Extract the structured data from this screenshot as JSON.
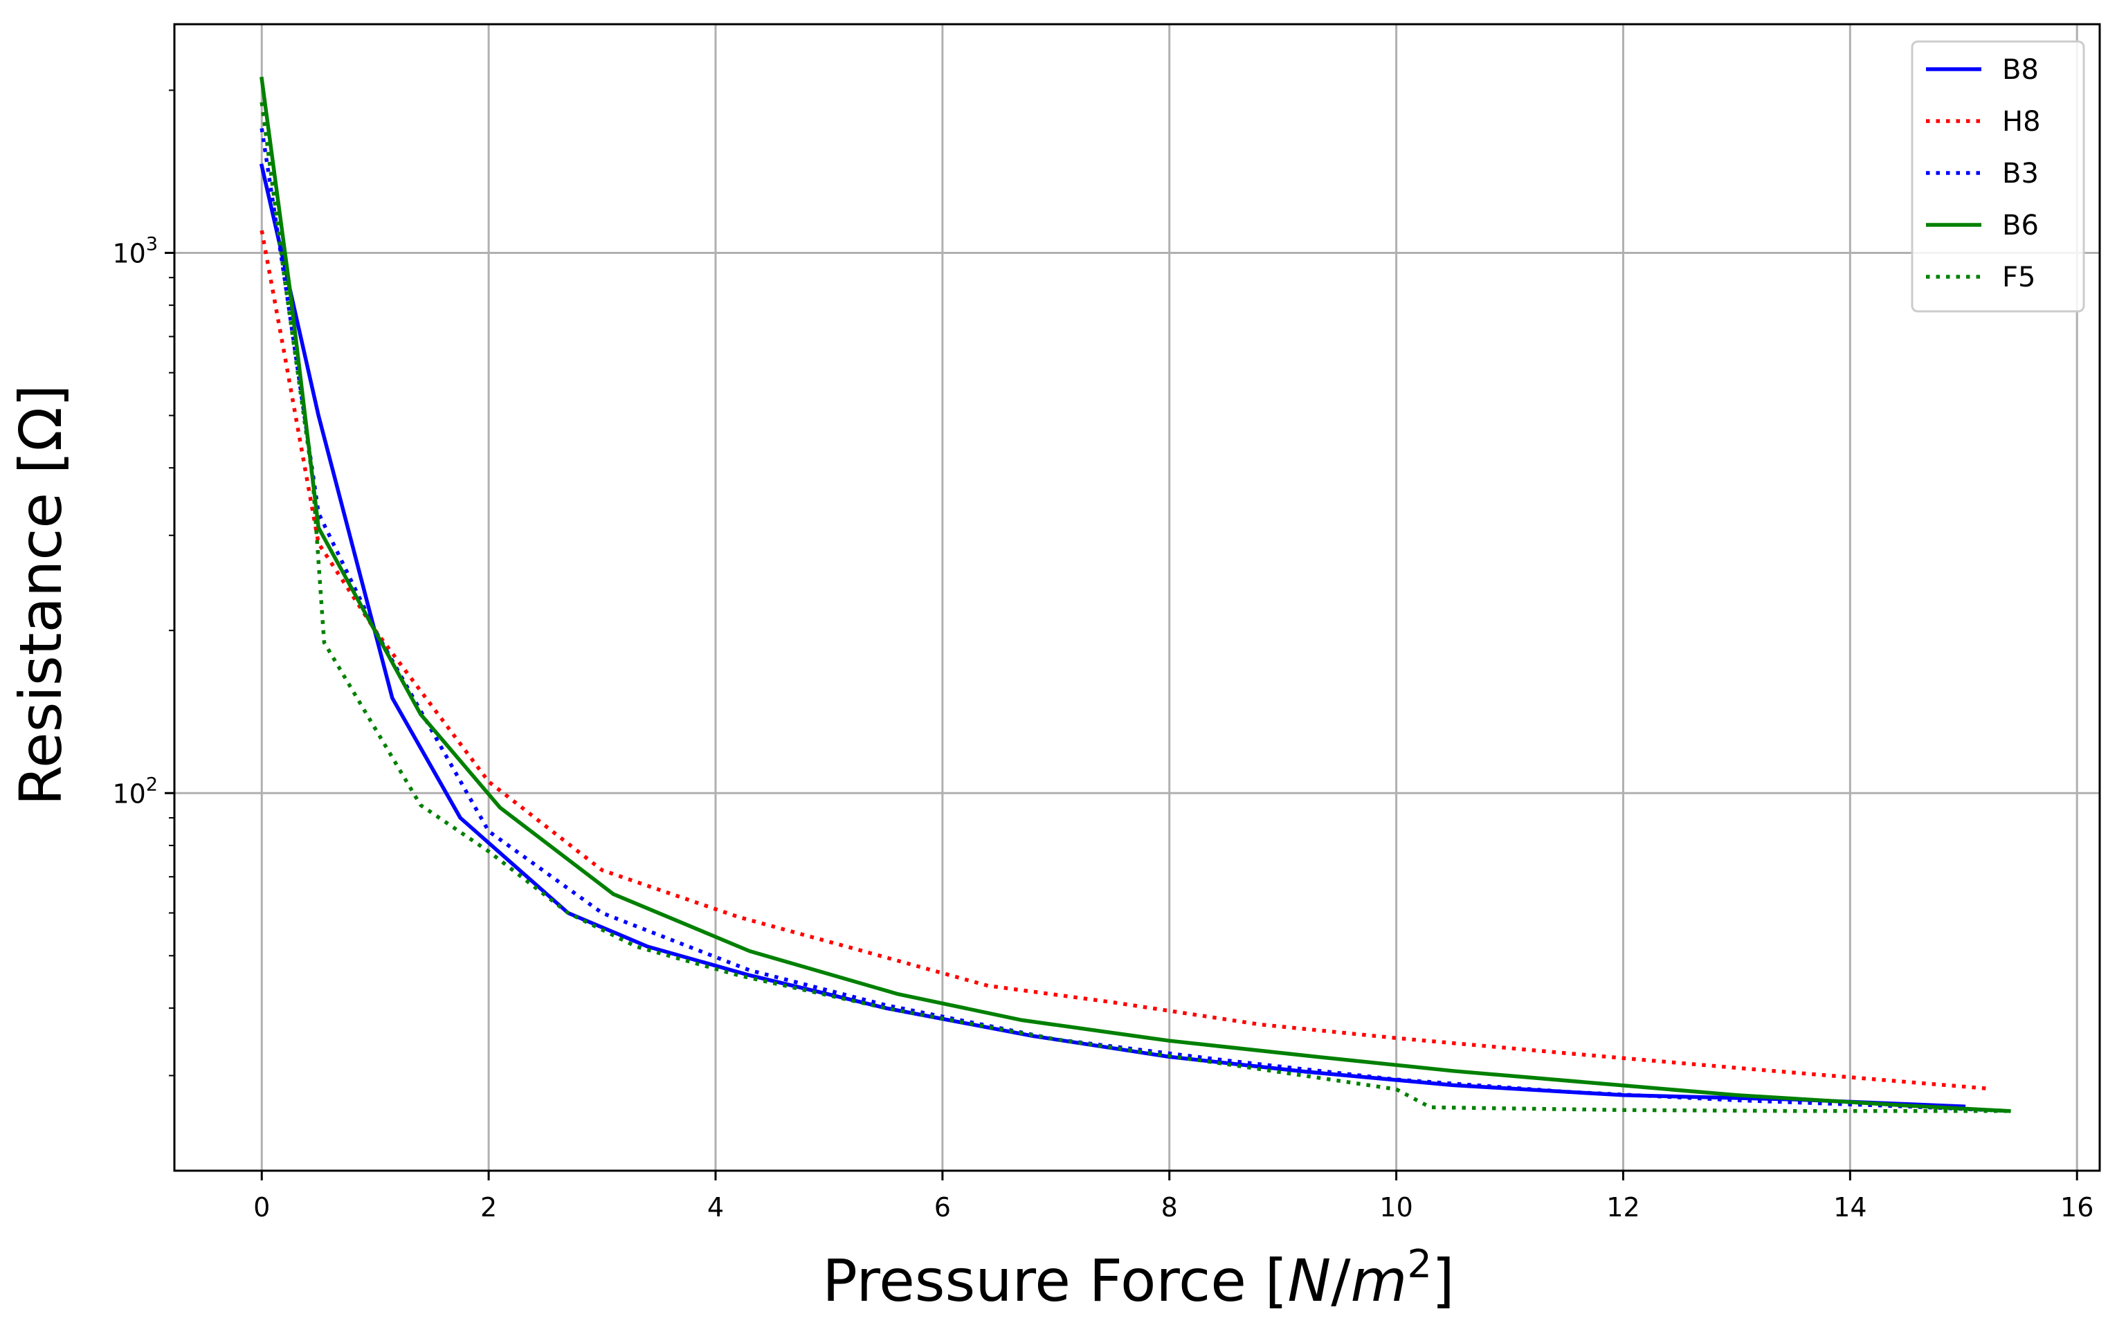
{
  "chart_data": {
    "type": "line",
    "xlabel": "Pressure Force [N/m²]",
    "xlabel_parts": {
      "prefix": "Pressure Force [",
      "var_n": "N",
      "slash": "/",
      "var_m": "m",
      "sup": "2",
      "suffix": "]"
    },
    "ylabel": "Resistance [Ω]",
    "xlim": [
      -0.77,
      16.2
    ],
    "ylim": [
      20,
      2650
    ],
    "yscale": "log",
    "grid": true,
    "legend_position": "top-right",
    "x_ticks": [
      {
        "value": 0,
        "label": "0"
      },
      {
        "value": 2,
        "label": "2"
      },
      {
        "value": 4,
        "label": "4"
      },
      {
        "value": 6,
        "label": "6"
      },
      {
        "value": 8,
        "label": "8"
      },
      {
        "value": 10,
        "label": "10"
      },
      {
        "value": 12,
        "label": "12"
      },
      {
        "value": 14,
        "label": "14"
      },
      {
        "value": 16,
        "label": "16"
      }
    ],
    "y_ticks": [
      {
        "value": 100,
        "base": "10",
        "exp": "2"
      },
      {
        "value": 1000,
        "base": "10",
        "exp": "3"
      }
    ],
    "series": [
      {
        "name": "B8",
        "color": "#0000ff",
        "style": "solid",
        "x": [
          0.0,
          0.2,
          0.5,
          1.15,
          1.75,
          2.7,
          3.4,
          4.3,
          5.5,
          6.8,
          8.0,
          9.2,
          10.5,
          12.0,
          13.5,
          15.0
        ],
        "y": [
          1450,
          950,
          500,
          150,
          90,
          60,
          52,
          46,
          40,
          35.5,
          32.5,
          30.5,
          28.8,
          27.6,
          27.1,
          26.3
        ]
      },
      {
        "name": "H8",
        "color": "#ff0000",
        "style": "dotted",
        "x": [
          0.0,
          0.2,
          0.5,
          1.0,
          2.0,
          3.0,
          4.2,
          5.3,
          6.4,
          7.5,
          8.8,
          10.0,
          11.5,
          13.0,
          14.5,
          15.2
        ],
        "y": [
          1100,
          650,
          290,
          200,
          105,
          72,
          59,
          51,
          44,
          41,
          37.3,
          35.2,
          33,
          31,
          29.2,
          28.4
        ]
      },
      {
        "name": "B3",
        "color": "#0000ff",
        "style": "dotted",
        "x": [
          0.0,
          0.2,
          0.5,
          1.0,
          2.0,
          3.0,
          4.3,
          5.5,
          7.0,
          8.5,
          10.0,
          11.5,
          13.0,
          14.5,
          15.4
        ],
        "y": [
          1700,
          900,
          330,
          200,
          85,
          60,
          47,
          40.5,
          35,
          32,
          29.5,
          28,
          27,
          26.3,
          25.8
        ]
      },
      {
        "name": "B6",
        "color": "#008000",
        "style": "solid",
        "x": [
          0.0,
          0.25,
          0.5,
          1.4,
          2.1,
          3.1,
          4.3,
          5.6,
          6.7,
          8.0,
          9.3,
          10.5,
          11.8,
          13.0,
          14.5,
          15.4
        ],
        "y": [
          2100,
          850,
          310,
          140,
          94,
          65,
          51,
          42.5,
          38,
          34.8,
          32.5,
          30.6,
          29,
          27.6,
          26.4,
          25.8
        ]
      },
      {
        "name": "F5",
        "color": "#008000",
        "style": "dotted",
        "x": [
          0.0,
          0.2,
          0.45,
          0.55,
          1.4,
          2.0,
          2.7,
          3.3,
          4.2,
          5.5,
          7.0,
          8.5,
          10.0,
          10.3,
          12.0,
          13.5,
          15.4
        ],
        "y": [
          1900,
          900,
          380,
          190,
          95,
          78,
          60,
          52,
          46,
          40,
          35,
          31.5,
          28.3,
          26.2,
          25.9,
          25.8,
          25.8
        ]
      }
    ]
  }
}
